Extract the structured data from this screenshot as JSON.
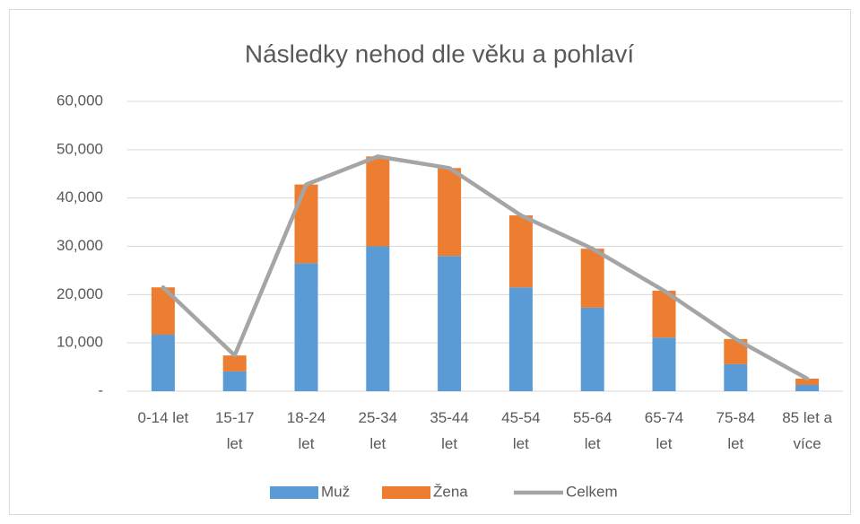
{
  "chart_data": {
    "type": "stacked_bar_line",
    "title": "Následky nehod dle věku a pohlaví",
    "categories": [
      "0-14 let",
      "15-17 let",
      "18-24 let",
      "25-34 let",
      "35-44 let",
      "45-54 let",
      "55-64 let",
      "65-74 let",
      "75-84 let",
      "85 let a více"
    ],
    "series": [
      {
        "name": "Muž",
        "color": "#5b9bd5",
        "type": "bar",
        "values": [
          11700,
          4100,
          26500,
          30000,
          28000,
          21500,
          17300,
          11100,
          5600,
          1300
        ]
      },
      {
        "name": "Žena",
        "color": "#ed7d31",
        "type": "bar",
        "values": [
          9800,
          3300,
          16300,
          18600,
          18200,
          14900,
          12200,
          9700,
          5200,
          1300
        ]
      },
      {
        "name": "Celkem",
        "color": "#a5a5a5",
        "type": "line",
        "values": [
          21500,
          7400,
          42800,
          48600,
          46200,
          36400,
          29500,
          20800,
          10800,
          2600
        ]
      }
    ],
    "ylim": [
      0,
      60000
    ],
    "yticks": [
      {
        "value": 0,
        "label": "-"
      },
      {
        "value": 10000,
        "label": "10,000"
      },
      {
        "value": 20000,
        "label": "20,000"
      },
      {
        "value": 30000,
        "label": "30,000"
      },
      {
        "value": 40000,
        "label": "40,000"
      },
      {
        "value": 50000,
        "label": "50,000"
      },
      {
        "value": 60000,
        "label": "60,000"
      }
    ],
    "grid": true,
    "legend": "bottom"
  }
}
